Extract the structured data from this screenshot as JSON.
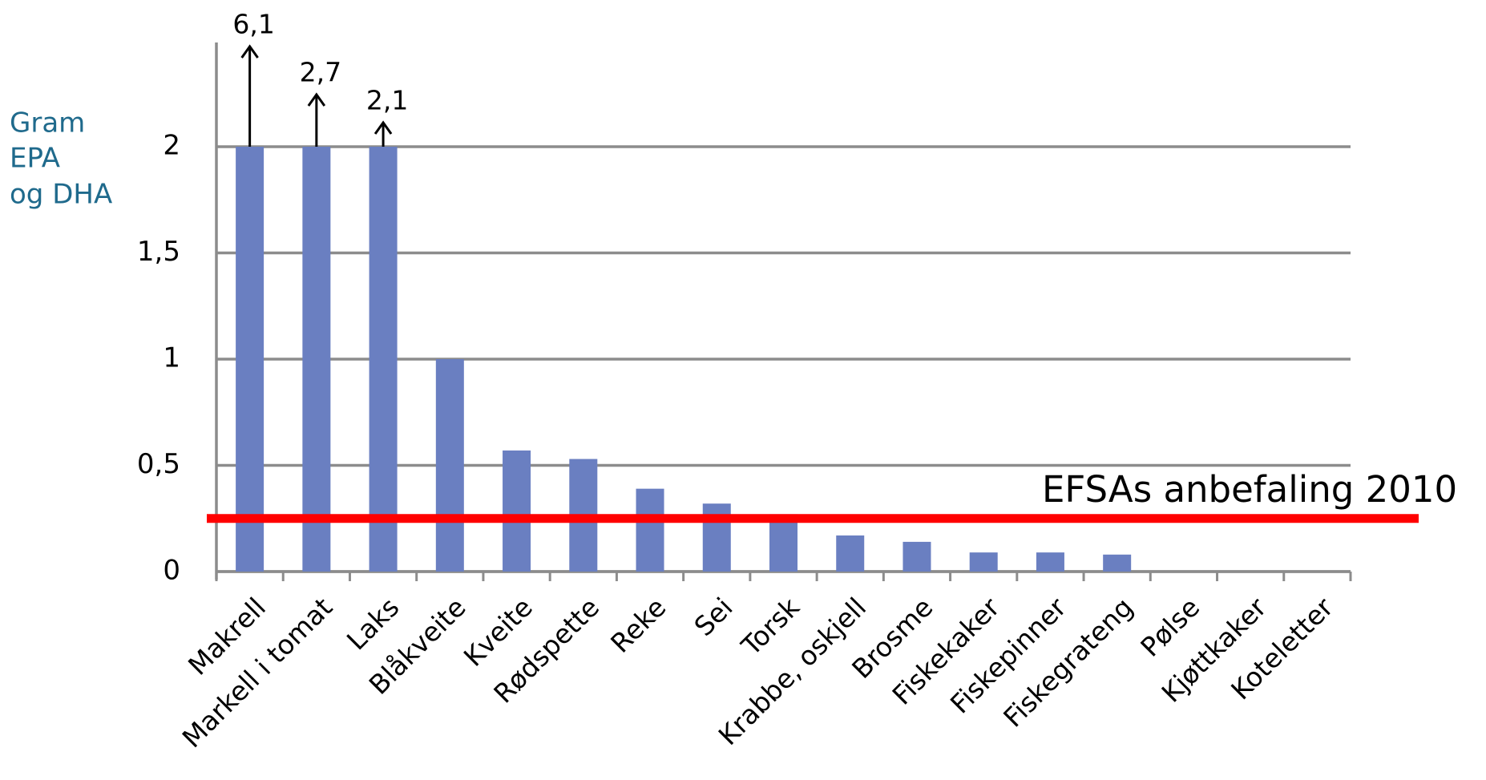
{
  "chart_data": {
    "type": "bar",
    "y_axis_label": [
      "Gram",
      "EPA",
      "og DHA"
    ],
    "categories": [
      "Makrell",
      "Markell i tomat",
      "Laks",
      "Blåkveite",
      "Kveite",
      "Rødspette",
      "Reke",
      "Sei",
      "Torsk",
      "Krabbe, oskjell",
      "Brosme",
      "Fiskekaker",
      "Fiskepinner",
      "Fiskegrateng",
      "Pølse",
      "Kjøttkaker",
      "Koteletter"
    ],
    "values": [
      6.1,
      2.7,
      2.1,
      1,
      0.57,
      0.53,
      0.39,
      0.32,
      0.27,
      0.17,
      0.14,
      0.09,
      0.09,
      0.08,
      0,
      0,
      0
    ],
    "value_labels": [
      "6,1",
      "2,7",
      "2,1",
      null,
      null,
      null,
      null,
      null,
      null,
      null,
      null,
      null,
      null,
      null,
      null,
      null,
      null
    ],
    "color": "#6a7fc1",
    "ylim": [
      0,
      2
    ],
    "yticks": [
      0,
      {
        "value": 0.5,
        "label": "0,5"
      },
      1,
      {
        "value": 1.5,
        "label": "1,5"
      },
      2
    ],
    "grid": true,
    "reference_line": {
      "value": 0.25,
      "label": "EFSAs anbefaling 2010",
      "color": "#ff0000"
    }
  }
}
